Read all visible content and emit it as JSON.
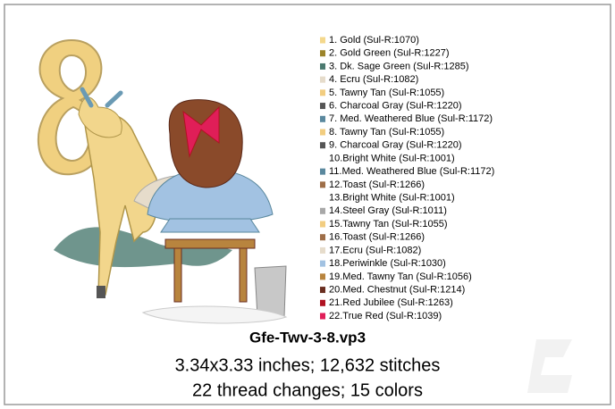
{
  "design": {
    "title": "Gfe-Twv-3-8.vp3",
    "size_line": "3.34x3.33 inches; 12,632 stitches",
    "changes_line": "22 thread changes; 15 colors",
    "threads": [
      {
        "label": "1.  Gold (Sul-R:1070)",
        "color": "#f4d88c"
      },
      {
        "label": "2.  Gold Green (Sul-R:1227)",
        "color": "#9c842a"
      },
      {
        "label": "3.  Dk. Sage Green (Sul-R:1285)",
        "color": "#4b7a70"
      },
      {
        "label": "4.  Ecru (Sul-R:1082)",
        "color": "#e6dccb"
      },
      {
        "label": "5.  Tawny Tan (Sul-R:1055)",
        "color": "#f2cd80"
      },
      {
        "label": "6.  Charcoal Gray (Sul-R:1220)",
        "color": "#555555"
      },
      {
        "label": "7.  Med. Weathered Blue (Sul-R:1172)",
        "color": "#5a889e"
      },
      {
        "label": "8.  Tawny Tan (Sul-R:1055)",
        "color": "#f2cd80"
      },
      {
        "label": "9.  Charcoal Gray (Sul-R:1220)",
        "color": "#555555"
      },
      {
        "label": "10.Bright White (Sul-R:1001)",
        "color": "#ffffff"
      },
      {
        "label": "11.Med. Weathered Blue (Sul-R:1172)",
        "color": "#5a889e"
      },
      {
        "label": "12.Toast (Sul-R:1266)",
        "color": "#9e6e48"
      },
      {
        "label": "13.Bright White (Sul-R:1001)",
        "color": "#ffffff"
      },
      {
        "label": "14.Steel Gray (Sul-R:1011)",
        "color": "#a8a8a8"
      },
      {
        "label": "15.Tawny Tan (Sul-R:1055)",
        "color": "#f2cd80"
      },
      {
        "label": "16.Toast (Sul-R:1266)",
        "color": "#9e6e48"
      },
      {
        "label": "17.Ecru (Sul-R:1082)",
        "color": "#e6dccb"
      },
      {
        "label": "18.Periwinkle (Sul-R:1030)",
        "color": "#a2c2e2"
      },
      {
        "label": "19.Med. Tawny Tan (Sul-R:1056)",
        "color": "#b8843e"
      },
      {
        "label": "20.Med. Chestnut (Sul-R:1214)",
        "color": "#6a2e20"
      },
      {
        "label": "21.Red Jubilee (Sul-R:1263)",
        "color": "#b01222"
      },
      {
        "label": "22.True Red (Sul-R:1039)",
        "color": "#e01e58"
      }
    ]
  }
}
